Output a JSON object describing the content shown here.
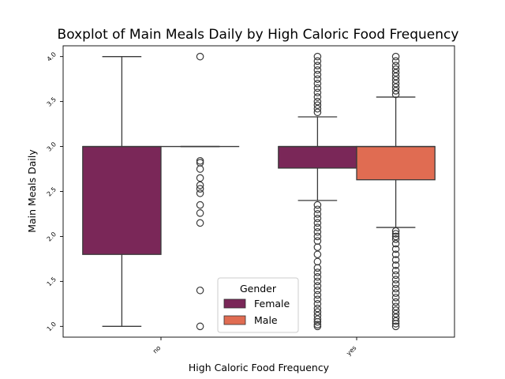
{
  "chart_data": {
    "type": "boxplot",
    "title": "Boxplot of Main Meals Daily by High Caloric Food Frequency",
    "xlabel": "High Caloric Food Frequency",
    "ylabel": "Main Meals Daily",
    "categories": [
      "no",
      "yes"
    ],
    "ylim": [
      0.88,
      4.12
    ],
    "yticks": [
      "1.0",
      "1.5",
      "2.0",
      "2.5",
      "3.0",
      "3.5",
      "4.0"
    ],
    "ytick_values": [
      1.0,
      1.5,
      2.0,
      2.5,
      3.0,
      3.5,
      4.0
    ],
    "grid": false,
    "legend": {
      "title": "Gender",
      "placement": "lower-center"
    },
    "series": [
      {
        "name": "Female",
        "color": "#7a2758",
        "boxes": [
          {
            "category": "no",
            "whisker_low": 1.0,
            "q1": 1.8,
            "median": 3.0,
            "q3": 3.0,
            "whisker_high": 4.0,
            "outliers": []
          },
          {
            "category": "yes",
            "whisker_low": 2.4,
            "q1": 2.76,
            "median": 3.0,
            "q3": 3.0,
            "whisker_high": 3.33,
            "outliers": [
              1.0,
              1.02,
              1.05,
              1.08,
              1.12,
              1.16,
              1.2,
              1.25,
              1.3,
              1.35,
              1.4,
              1.45,
              1.5,
              1.55,
              1.6,
              1.65,
              1.72,
              1.8,
              1.88,
              1.95,
              2.0,
              2.05,
              2.1,
              2.15,
              2.2,
              2.25,
              2.3,
              2.35,
              3.38,
              3.42,
              3.46,
              3.5,
              3.55,
              3.6,
              3.65,
              3.7,
              3.75,
              3.8,
              3.85,
              3.9,
              3.95,
              4.0
            ]
          }
        ]
      },
      {
        "name": "Male",
        "color": "#e06c52",
        "boxes": [
          {
            "category": "no",
            "whisker_low": 3.0,
            "q1": 3.0,
            "median": 3.0,
            "q3": 3.0,
            "whisker_high": 3.0,
            "outliers": [
              1.0,
              1.4,
              2.15,
              2.26,
              2.35,
              2.48,
              2.53,
              2.57,
              2.65,
              2.75,
              2.82,
              2.84,
              4.0
            ]
          },
          {
            "category": "yes",
            "whisker_low": 2.1,
            "q1": 2.63,
            "median": 3.0,
            "q3": 3.0,
            "whisker_high": 3.55,
            "outliers": [
              1.0,
              1.03,
              1.06,
              1.1,
              1.14,
              1.18,
              1.22,
              1.27,
              1.32,
              1.37,
              1.42,
              1.47,
              1.52,
              1.57,
              1.62,
              1.68,
              1.74,
              1.8,
              1.86,
              1.92,
              1.97,
              2.0,
              2.03,
              2.06,
              3.58,
              3.62,
              3.66,
              3.7,
              3.74,
              3.78,
              3.82,
              3.86,
              3.9,
              3.95,
              4.0
            ]
          }
        ]
      }
    ]
  }
}
